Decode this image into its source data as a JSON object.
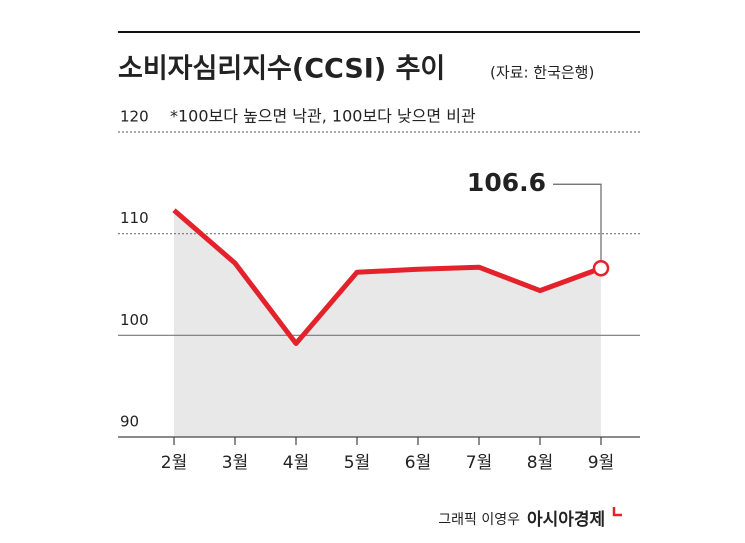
{
  "chart_data": {
    "type": "line",
    "title": "소비자심리지수(CCSI) 추이",
    "source": "(자료: 한국은행)",
    "note": "*100보다 높으면 낙관, 100보다 낮으면 비관",
    "credit": "그래픽 이영우",
    "publisher": "아시아경제",
    "categories": [
      "2월",
      "3월",
      "4월",
      "5월",
      "6월",
      "7월",
      "8월",
      "9월"
    ],
    "series": [
      {
        "name": "소비자심리지수",
        "color": "#e3222b",
        "values": [
          112.3,
          107.1,
          99.2,
          106.2,
          106.5,
          106.7,
          104.4,
          106.6
        ]
      }
    ],
    "ylim": [
      90,
      120
    ],
    "yticks": [
      90,
      100,
      110,
      120
    ],
    "grid": true
  }
}
